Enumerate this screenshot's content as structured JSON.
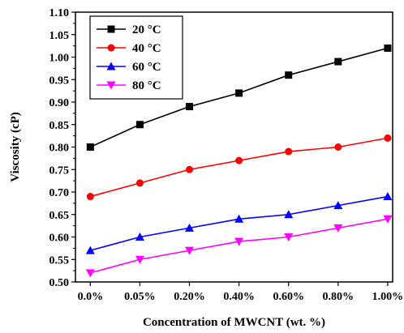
{
  "chart_data": {
    "type": "line",
    "title": "",
    "xlabel": "Concentration of  MWCNT (wt. %)",
    "ylabel": "Viscosity (cP)",
    "categories": [
      "0.0%",
      "0.05%",
      "0.20%",
      "0.40%",
      "0.60%",
      "0.80%",
      "1.00%"
    ],
    "ylim": [
      0.5,
      1.1
    ],
    "yticks": [
      "0.50",
      "0.55",
      "0.60",
      "0.65",
      "0.70",
      "0.75",
      "0.80",
      "0.85",
      "0.90",
      "0.95",
      "1.00",
      "1.05",
      "1.10"
    ],
    "grid": false,
    "legend_position": "top-left",
    "series": [
      {
        "name": "20 °C",
        "color": "#000000",
        "marker": "square",
        "values": [
          0.8,
          0.85,
          0.89,
          0.92,
          0.96,
          0.99,
          1.02
        ]
      },
      {
        "name": "40 °C",
        "color": "#ff0000",
        "marker": "circle",
        "values": [
          0.69,
          0.72,
          0.75,
          0.77,
          0.79,
          0.8,
          0.82
        ]
      },
      {
        "name": "60 °C",
        "color": "#0000ff",
        "marker": "triangle-up",
        "values": [
          0.57,
          0.6,
          0.62,
          0.64,
          0.65,
          0.67,
          0.69
        ]
      },
      {
        "name": "80 °C",
        "color": "#ff00ff",
        "marker": "triangle-down",
        "values": [
          0.52,
          0.55,
          0.57,
          0.59,
          0.6,
          0.62,
          0.64
        ]
      }
    ]
  }
}
